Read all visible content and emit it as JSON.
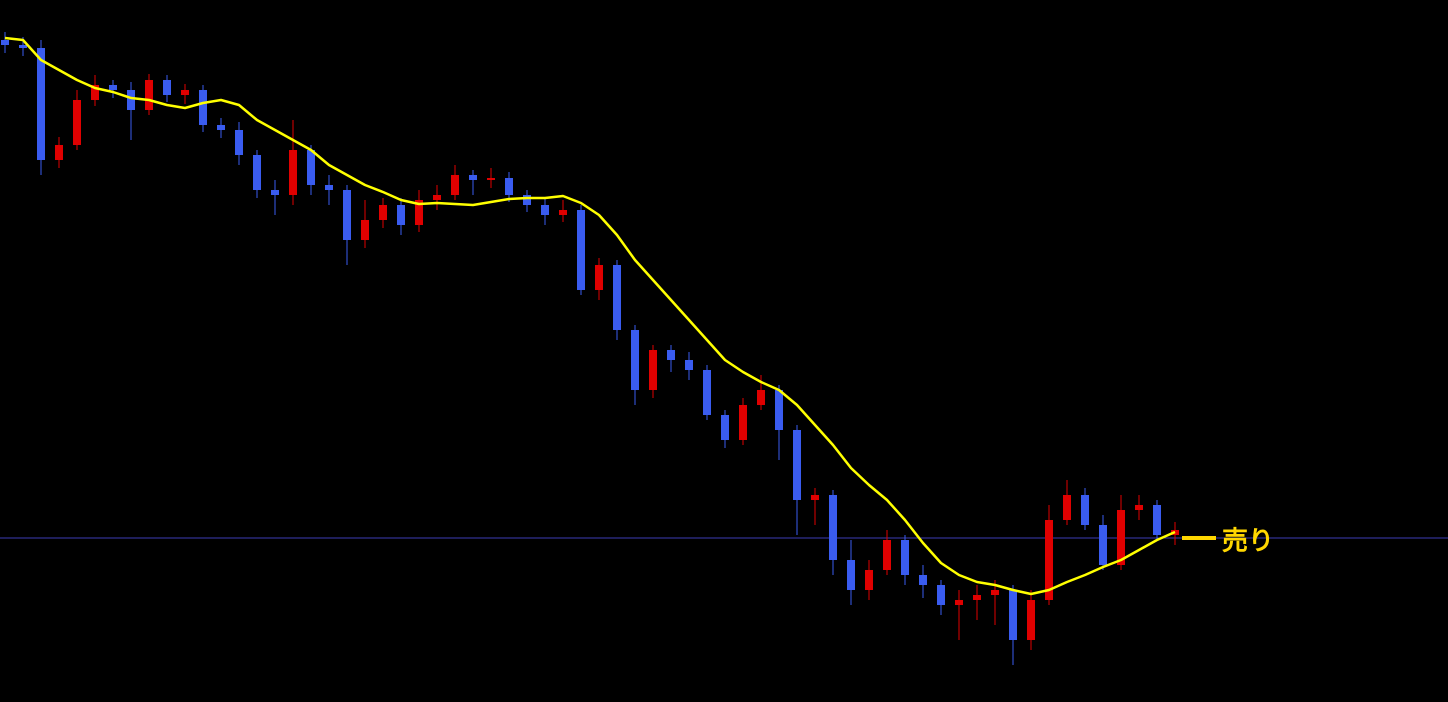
{
  "chart_data": {
    "type": "candlestick",
    "ylim": [
      0,
      702
    ],
    "up_color": "#e00000",
    "down_color": "#3a5cf0",
    "open": [
      662,
      657,
      654,
      542,
      557,
      602,
      617,
      612,
      592,
      622,
      607,
      612,
      577,
      572,
      547,
      512,
      507,
      552,
      517,
      512,
      462,
      482,
      497,
      477,
      502,
      507,
      527,
      522,
      524,
      507,
      497,
      487,
      492,
      412,
      437,
      372,
      312,
      352,
      342,
      332,
      287,
      262,
      297,
      312,
      272,
      202,
      207,
      142,
      112,
      132,
      162,
      127,
      117,
      97,
      102,
      107,
      112,
      62,
      102,
      182,
      207,
      177,
      137,
      192,
      197,
      167
    ],
    "high": [
      670,
      665,
      662,
      565,
      612,
      627,
      622,
      620,
      628,
      627,
      618,
      617,
      584,
      580,
      552,
      522,
      582,
      557,
      527,
      517,
      502,
      504,
      504,
      512,
      517,
      537,
      532,
      534,
      530,
      512,
      504,
      502,
      497,
      444,
      442,
      377,
      357,
      357,
      350,
      337,
      292,
      304,
      327,
      317,
      277,
      214,
      212,
      162,
      142,
      172,
      167,
      137,
      122,
      112,
      117,
      122,
      117,
      112,
      197,
      222,
      214,
      187,
      207,
      207,
      202,
      180
    ],
    "low": [
      649,
      646,
      527,
      534,
      552,
      596,
      604,
      562,
      587,
      600,
      598,
      570,
      564,
      537,
      504,
      487,
      497,
      507,
      497,
      437,
      454,
      474,
      467,
      470,
      492,
      502,
      507,
      514,
      500,
      490,
      477,
      480,
      407,
      402,
      362,
      297,
      304,
      330,
      322,
      282,
      254,
      257,
      292,
      242,
      167,
      177,
      127,
      97,
      102,
      127,
      117,
      104,
      87,
      62,
      82,
      77,
      37,
      52,
      97,
      177,
      172,
      132,
      132,
      182,
      162,
      157
    ],
    "close": [
      657,
      654,
      542,
      557,
      602,
      617,
      612,
      592,
      622,
      607,
      612,
      577,
      572,
      547,
      512,
      507,
      552,
      517,
      512,
      462,
      482,
      497,
      477,
      502,
      507,
      527,
      522,
      524,
      507,
      497,
      487,
      492,
      412,
      437,
      372,
      312,
      352,
      342,
      332,
      287,
      262,
      297,
      312,
      272,
      202,
      207,
      142,
      112,
      132,
      162,
      127,
      117,
      97,
      102,
      107,
      112,
      62,
      102,
      182,
      207,
      177,
      137,
      192,
      197,
      167,
      172
    ],
    "ma": {
      "color": "#ffff00",
      "values": [
        664,
        662,
        642,
        632,
        622,
        614,
        610,
        604,
        602,
        597,
        594,
        599,
        602,
        597,
        582,
        572,
        562,
        552,
        537,
        527,
        517,
        510,
        502,
        498,
        499,
        498,
        497,
        500,
        503,
        504,
        504,
        506,
        499,
        487,
        467,
        442,
        422,
        402,
        382,
        362,
        342,
        330,
        320,
        312,
        297,
        277,
        257,
        234,
        217,
        202,
        182,
        159,
        139,
        127,
        120,
        117,
        112,
        108,
        112,
        120,
        127,
        135,
        142,
        152,
        162,
        170
      ]
    },
    "hline": {
      "value": 164,
      "color": "#3c3cb4"
    },
    "annotation": {
      "text": "売り",
      "color": "#ffd700"
    }
  }
}
